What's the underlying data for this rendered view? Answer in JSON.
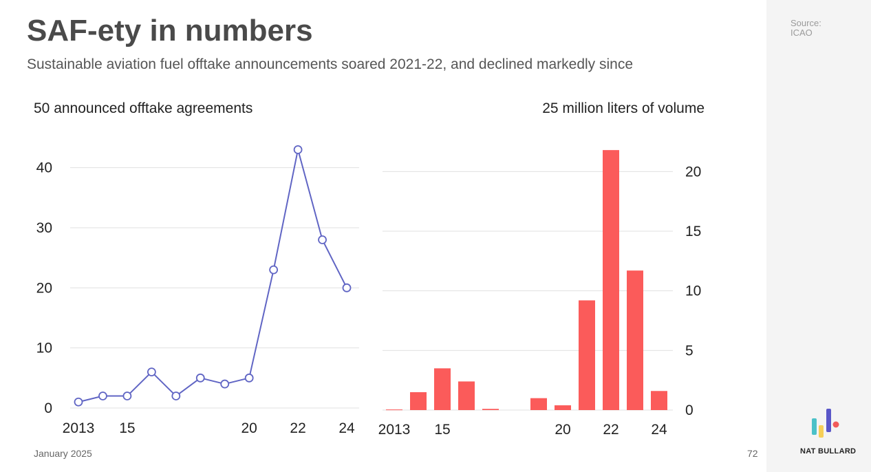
{
  "title": "SAF-ety in numbers",
  "subtitle": "Sustainable aviation fuel offtake announcements soared 2021-22, and declined markedly since",
  "footer": {
    "date": "January 2025",
    "page": "72"
  },
  "source": {
    "label": "Source:",
    "name": "ICAO"
  },
  "brand": {
    "name": "NAT BULLARD"
  },
  "colors": {
    "line": "#6065c4",
    "bar": "#fb5b5a",
    "grid": "#e0e0e0",
    "logo": [
      "#4bc1c8",
      "#f6cf58",
      "#5a57c8",
      "#f25a5a"
    ]
  },
  "chart_data": [
    {
      "type": "line",
      "title": "50 announced offtake agreements",
      "x": [
        2013,
        2014,
        2015,
        2016,
        2017,
        2018,
        2019,
        2020,
        2021,
        2022,
        2023,
        2024
      ],
      "values": [
        1,
        2,
        2,
        6,
        2,
        5,
        4,
        5,
        23,
        43,
        28,
        20
      ],
      "x_tick_values": [
        2013,
        2015,
        2020,
        2022,
        2024
      ],
      "x_tick_labels": [
        "2013",
        "15",
        "20",
        "22",
        "24"
      ],
      "y_ticks": [
        0,
        10,
        20,
        30,
        40
      ],
      "ylim": [
        0,
        45
      ],
      "xlabel": "",
      "ylabel": "",
      "grid": true
    },
    {
      "type": "bar",
      "title": "25 million liters of volume",
      "x": [
        2013,
        2014,
        2015,
        2016,
        2017,
        2018,
        2019,
        2020,
        2021,
        2022,
        2023,
        2024
      ],
      "values": [
        0.05,
        1.5,
        3.5,
        2.4,
        0.1,
        0,
        1.0,
        0.4,
        9.2,
        21.8,
        11.7,
        1.6
      ],
      "x_tick_values": [
        2013,
        2015,
        2020,
        2022,
        2024
      ],
      "x_tick_labels": [
        "2013",
        "15",
        "20",
        "22",
        "24"
      ],
      "y_ticks": [
        0,
        5,
        10,
        15,
        20
      ],
      "ylim": [
        0,
        22.5
      ],
      "y_axis_side": "right",
      "xlabel": "",
      "ylabel": "",
      "grid": true
    }
  ]
}
